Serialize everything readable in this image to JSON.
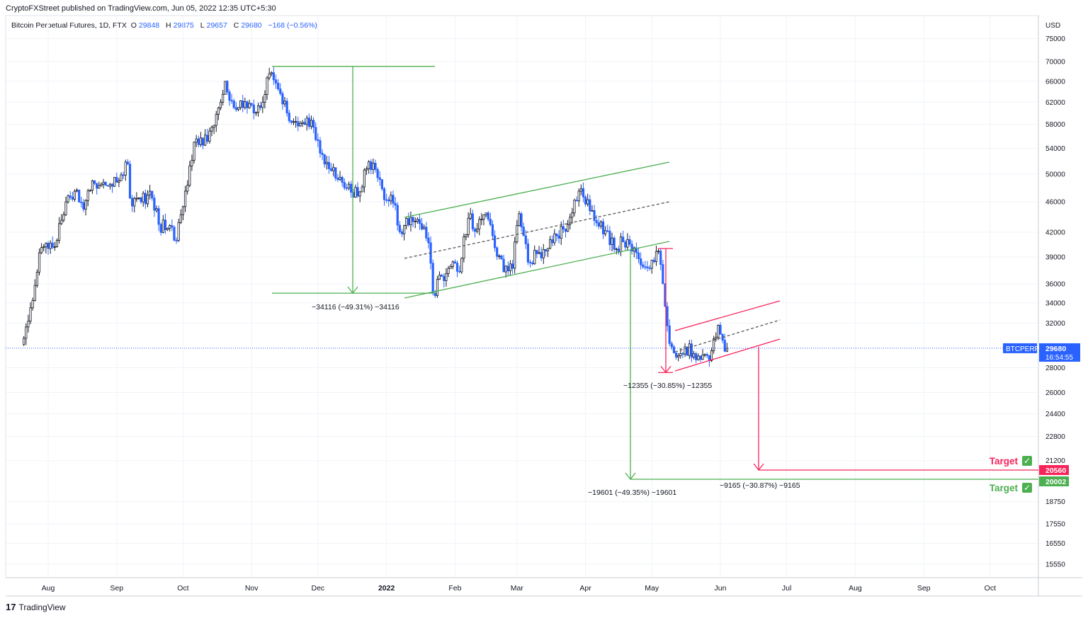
{
  "header": {
    "published": "CryptoFXStreet published on TradingView.com, Jun 05, 2022 12:35 UTC+5:30"
  },
  "legend": {
    "symbol": "Bitcoin Perpetual Futures, 1D, FTX",
    "o_label": "O",
    "o_value": "29848",
    "h_label": "H",
    "h_value": "29875",
    "l_label": "L",
    "l_value": "29657",
    "c_label": "C",
    "c_value": "29680",
    "change": "−168 (−0.56%)"
  },
  "footer": {
    "brand": "TradingView",
    "logo_mark": "17"
  },
  "chart_data": {
    "type": "candlestick",
    "currency_label": "USD",
    "y_ticks": [
      "75000",
      "70000",
      "66000",
      "62000",
      "58000",
      "54000",
      "50000",
      "46000",
      "42000",
      "39000",
      "36000",
      "34000",
      "32000",
      "28000",
      "26000",
      "24400",
      "22800",
      "21200",
      "18750",
      "17550",
      "16550",
      "15550"
    ],
    "y_scale": "log",
    "ylim": [
      15000,
      78000
    ],
    "x_ticks": [
      "Aug",
      "Sep",
      "Oct",
      "Nov",
      "Dec",
      "2022",
      "Feb",
      "Mar",
      "Apr",
      "May",
      "Jun",
      "Jul",
      "Aug",
      "Sep",
      "Oct"
    ],
    "last_price": {
      "symbol": "BTCPERP",
      "price": "29680",
      "countdown": "16:54:55"
    },
    "annotations": {
      "measure_1": "−34116 (−49.31%) −34116",
      "measure_2": "−12355 (−30.85%) −12355",
      "measure_3": "−19601 (−49.35%) −19601",
      "measure_4": "−9165 (−30.87%) −9165"
    },
    "targets": [
      {
        "label": "Target",
        "price": "20560",
        "color": "#f7235a"
      },
      {
        "label": "Target",
        "price": "20002",
        "color": "#4caf50"
      }
    ],
    "series": [
      {
        "values": [
          {
            "d": "2021-07-20",
            "c": 30000
          },
          {
            "d": "2021-07-24",
            "c": 33500
          },
          {
            "d": "2021-07-28",
            "c": 39500
          },
          {
            "d": "2021-08-01",
            "c": 40000
          },
          {
            "d": "2021-08-05",
            "c": 41000
          },
          {
            "d": "2021-08-09",
            "c": 46000
          },
          {
            "d": "2021-08-13",
            "c": 47500
          },
          {
            "d": "2021-08-17",
            "c": 45000
          },
          {
            "d": "2021-08-21",
            "c": 49000
          },
          {
            "d": "2021-08-25",
            "c": 48500
          },
          {
            "d": "2021-08-29",
            "c": 48500
          },
          {
            "d": "2021-09-02",
            "c": 49000
          },
          {
            "d": "2021-09-06",
            "c": 51500
          },
          {
            "d": "2021-09-07",
            "c": 46500
          },
          {
            "d": "2021-09-12",
            "c": 46000
          },
          {
            "d": "2021-09-16",
            "c": 47500
          },
          {
            "d": "2021-09-20",
            "c": 43000
          },
          {
            "d": "2021-09-24",
            "c": 42500
          },
          {
            "d": "2021-09-28",
            "c": 41000
          },
          {
            "d": "2021-10-02",
            "c": 47500
          },
          {
            "d": "2021-10-06",
            "c": 55000
          },
          {
            "d": "2021-10-10",
            "c": 54500
          },
          {
            "d": "2021-10-14",
            "c": 57500
          },
          {
            "d": "2021-10-18",
            "c": 62000
          },
          {
            "d": "2021-10-20",
            "c": 66000
          },
          {
            "d": "2021-10-24",
            "c": 61000
          },
          {
            "d": "2021-10-28",
            "c": 61000
          },
          {
            "d": "2021-11-01",
            "c": 61500
          },
          {
            "d": "2021-11-05",
            "c": 61000
          },
          {
            "d": "2021-11-09",
            "c": 67500
          },
          {
            "d": "2021-11-13",
            "c": 64500
          },
          {
            "d": "2021-11-17",
            "c": 60000
          },
          {
            "d": "2021-11-21",
            "c": 58500
          },
          {
            "d": "2021-11-25",
            "c": 58000
          },
          {
            "d": "2021-11-29",
            "c": 57500
          },
          {
            "d": "2021-12-03",
            "c": 53000
          },
          {
            "d": "2021-12-07",
            "c": 50500
          },
          {
            "d": "2021-12-11",
            "c": 49500
          },
          {
            "d": "2021-12-15",
            "c": 48500
          },
          {
            "d": "2021-12-19",
            "c": 46800
          },
          {
            "d": "2021-12-23",
            "c": 50800
          },
          {
            "d": "2021-12-27",
            "c": 50700
          },
          {
            "d": "2021-12-31",
            "c": 46300
          },
          {
            "d": "2022-01-04",
            "c": 45800
          },
          {
            "d": "2022-01-08",
            "c": 41800
          },
          {
            "d": "2022-01-12",
            "c": 43900
          },
          {
            "d": "2022-01-16",
            "c": 43100
          },
          {
            "d": "2022-01-20",
            "c": 40700
          },
          {
            "d": "2022-01-22",
            "c": 35000
          },
          {
            "d": "2022-01-26",
            "c": 36800
          },
          {
            "d": "2022-01-30",
            "c": 37900
          },
          {
            "d": "2022-02-03",
            "c": 37300
          },
          {
            "d": "2022-02-07",
            "c": 43800
          },
          {
            "d": "2022-02-11",
            "c": 42400
          },
          {
            "d": "2022-02-15",
            "c": 44500
          },
          {
            "d": "2022-02-19",
            "c": 40100
          },
          {
            "d": "2022-02-23",
            "c": 37300
          },
          {
            "d": "2022-02-27",
            "c": 37700
          },
          {
            "d": "2022-03-02",
            "c": 44400
          },
          {
            "d": "2022-03-06",
            "c": 38400
          },
          {
            "d": "2022-03-10",
            "c": 39400
          },
          {
            "d": "2022-03-14",
            "c": 39700
          },
          {
            "d": "2022-03-18",
            "c": 41800
          },
          {
            "d": "2022-03-22",
            "c": 42400
          },
          {
            "d": "2022-03-26",
            "c": 44500
          },
          {
            "d": "2022-03-29",
            "c": 47500
          },
          {
            "d": "2022-04-02",
            "c": 46300
          },
          {
            "d": "2022-04-06",
            "c": 43200
          },
          {
            "d": "2022-04-10",
            "c": 42200
          },
          {
            "d": "2022-04-14",
            "c": 39900
          },
          {
            "d": "2022-04-18",
            "c": 40800
          },
          {
            "d": "2022-04-22",
            "c": 39700
          },
          {
            "d": "2022-04-26",
            "c": 38100
          },
          {
            "d": "2022-04-30",
            "c": 37700
          },
          {
            "d": "2022-05-04",
            "c": 39700
          },
          {
            "d": "2022-05-06",
            "c": 36000
          },
          {
            "d": "2022-05-09",
            "c": 30100
          },
          {
            "d": "2022-05-12",
            "c": 28900
          },
          {
            "d": "2022-05-16",
            "c": 29800
          },
          {
            "d": "2022-05-20",
            "c": 29200
          },
          {
            "d": "2022-05-24",
            "c": 29100
          },
          {
            "d": "2022-05-27",
            "c": 28600
          },
          {
            "d": "2022-05-31",
            "c": 31800
          },
          {
            "d": "2022-06-02",
            "c": 30400
          },
          {
            "d": "2022-06-04",
            "c": 29680
          }
        ]
      }
    ]
  }
}
